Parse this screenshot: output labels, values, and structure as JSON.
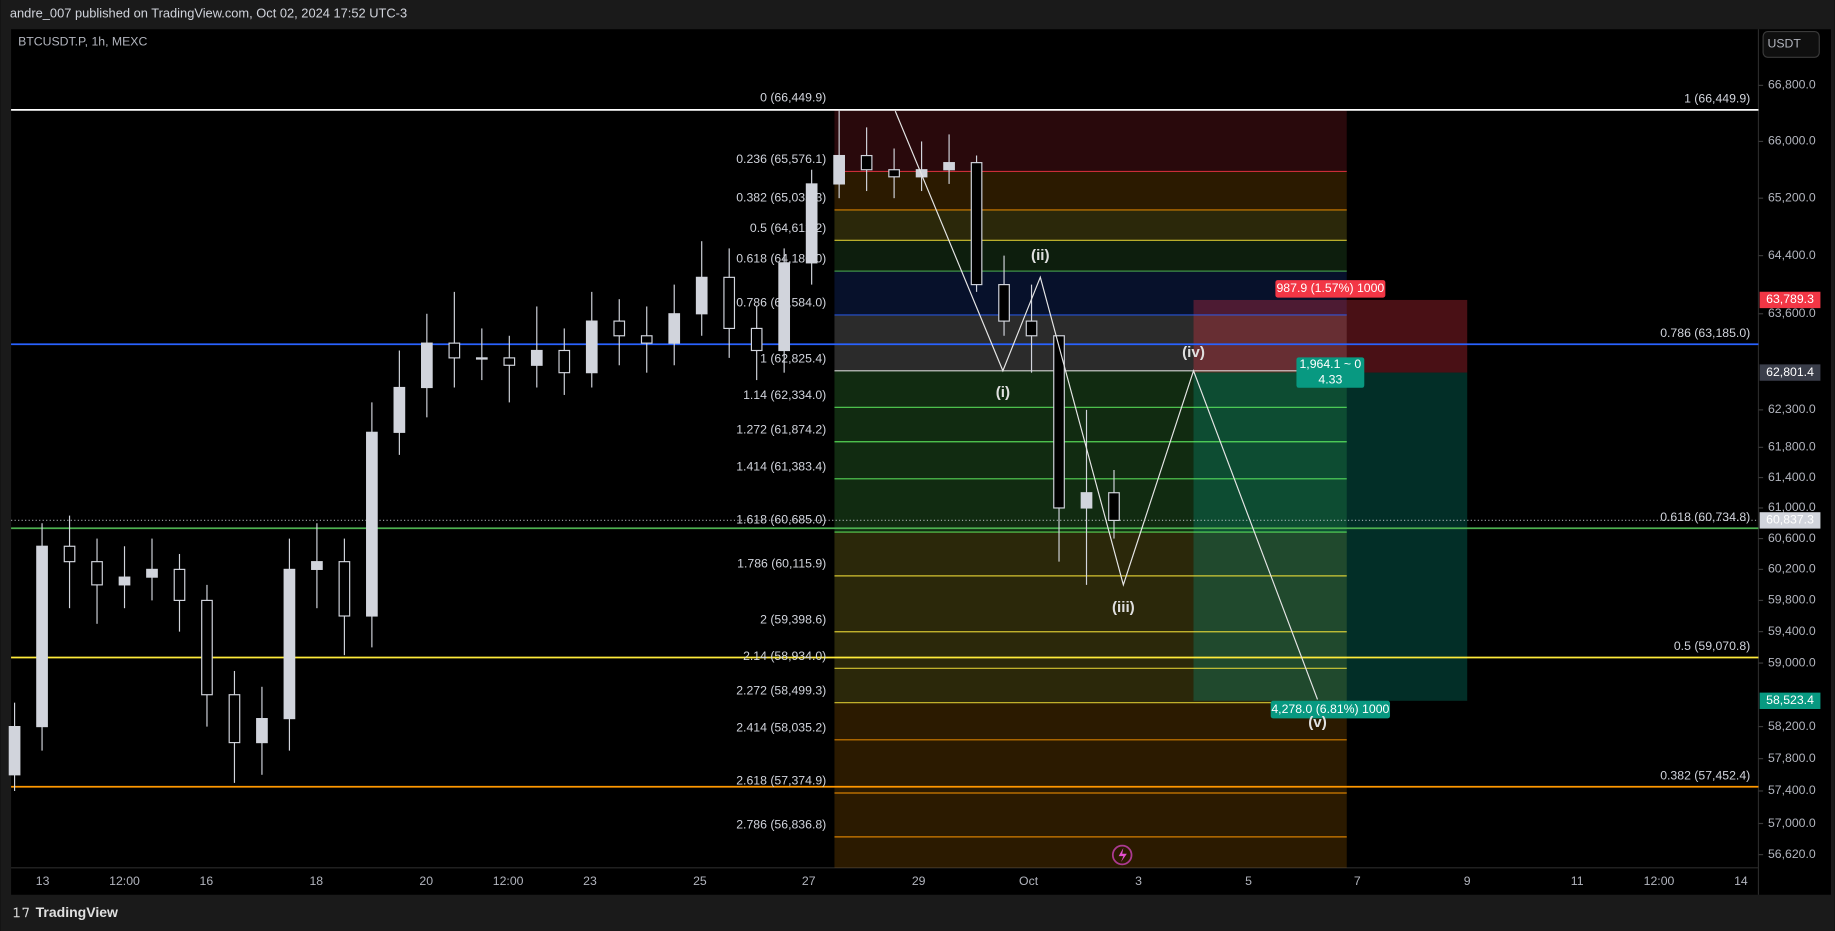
{
  "header": {
    "publisher": "andre_007 published on TradingView.com, Oct 02, 2024 17:52 UTC-3"
  },
  "footer": {
    "brand": "TradingView"
  },
  "chart_data": {
    "type": "candlestick",
    "symbol": "BTCUSDT.P, 1h, MEXC",
    "currency": "USDT",
    "log_scale": true,
    "color": "#d1d4dc",
    "ylim": [
      56134,
      67611
    ],
    "yticks": [
      {
        "value": 66800,
        "label": "66,800.0"
      },
      {
        "value": 66000,
        "label": "66,000.0"
      },
      {
        "value": 65200,
        "label": "65,200.0"
      },
      {
        "value": 64400,
        "label": "64,400.0"
      },
      {
        "value": 63600,
        "label": "63,600.0"
      },
      {
        "value": 62300,
        "label": "62,300.0"
      },
      {
        "value": 61800,
        "label": "61,800.0"
      },
      {
        "value": 61400,
        "label": "61,400.0"
      },
      {
        "value": 61000,
        "label": "61,000.0"
      },
      {
        "value": 60600,
        "label": "60,600.0"
      },
      {
        "value": 60200,
        "label": "60,200.0"
      },
      {
        "value": 59800,
        "label": "59,800.0"
      },
      {
        "value": 59400,
        "label": "59,400.0"
      },
      {
        "value": 59000,
        "label": "59,000.0"
      },
      {
        "value": 58200,
        "label": "58,200.0"
      },
      {
        "value": 57800,
        "label": "57,800.0"
      },
      {
        "value": 57400,
        "label": "57,400.0"
      },
      {
        "value": 57000,
        "label": "57,000.0"
      },
      {
        "value": 56620,
        "label": "56,620.0"
      }
    ],
    "x_labels": [
      "13",
      "12:00",
      "16",
      "18",
      "20",
      "12:00",
      "23",
      "25",
      "27",
      "29",
      "Oct",
      "3",
      "5",
      "7",
      "9",
      "11",
      "12:00",
      "14"
    ],
    "open": [
      57600,
      58200,
      60500,
      60300,
      60000,
      60100,
      60200,
      59800,
      58600,
      58000,
      58300,
      60200,
      60300,
      59600,
      62000,
      62600,
      63200,
      63000,
      63000,
      62900,
      63100,
      62800,
      63500,
      63300,
      63200,
      63600,
      64100,
      63400,
      63100,
      64300,
      65400,
      65800,
      65600,
      65500,
      65600,
      65700,
      64000,
      63500,
      63300,
      61000,
      61200
    ],
    "high": [
      58500,
      60800,
      60900,
      60600,
      60500,
      60600,
      60400,
      60000,
      58900,
      58700,
      60600,
      60800,
      60600,
      62400,
      63100,
      63600,
      63900,
      63400,
      63300,
      63700,
      63400,
      63900,
      63800,
      63700,
      64000,
      64600,
      64500,
      63700,
      64500,
      65600,
      66450,
      66200,
      65900,
      66000,
      66100,
      65800,
      64400,
      64000,
      63300,
      62300,
      61500
    ],
    "low": [
      57400,
      57900,
      59700,
      59500,
      59700,
      59800,
      59400,
      58200,
      57500,
      57600,
      57900,
      59700,
      59100,
      59200,
      61700,
      62200,
      62600,
      62700,
      62400,
      62600,
      62500,
      62600,
      62900,
      62800,
      62900,
      63300,
      63000,
      62700,
      62800,
      64000,
      65200,
      65300,
      65200,
      65300,
      65400,
      63900,
      63300,
      62800,
      60300,
      60000,
      60600
    ],
    "close": [
      58200,
      60500,
      60300,
      60000,
      60100,
      60200,
      59800,
      58600,
      58000,
      58300,
      60200,
      60300,
      59600,
      62000,
      62600,
      63200,
      63000,
      63000,
      62900,
      63100,
      62800,
      63500,
      63300,
      63200,
      63600,
      64100,
      63400,
      63100,
      64300,
      65400,
      65800,
      65600,
      65500,
      65600,
      65700,
      64000,
      63500,
      63300,
      61000,
      61200,
      60837
    ],
    "fib_extension": [
      {
        "label": "0 (66,449.9)",
        "value": 66449.9,
        "color": "#ffffff"
      },
      {
        "label": "0.236 (65,576.1)",
        "value": 65576.1,
        "color": "#f23645"
      },
      {
        "label": "0.382 (65,035.3)",
        "value": 65035.3,
        "color": "#ff9800"
      },
      {
        "label": "0.5 (64,612.2)",
        "value": 64612.2,
        "color": "#ffeb3b"
      },
      {
        "label": "0.618 (64,186.0)",
        "value": 64186.0,
        "color": "#4caf50"
      },
      {
        "label": "0.786 (63,584.0)",
        "value": 63584.0,
        "color": "#2962ff"
      },
      {
        "label": "1 (62,825.4)",
        "value": 62825.4,
        "color": "#ffffff"
      },
      {
        "label": "1.14 (62,334.0)",
        "value": 62334.0,
        "color": "#66ff66"
      },
      {
        "label": "1.272 (61,874.2)",
        "value": 61874.2,
        "color": "#66ff66"
      },
      {
        "label": "1.414 (61,383.4)",
        "value": 61383.4,
        "color": "#66ff66"
      },
      {
        "label": "1.618 (60,685.0)",
        "value": 60685.0,
        "color": "#66ff66"
      },
      {
        "label": "1.786 (60,115.9)",
        "value": 60115.9,
        "color": "#ffeb3b"
      },
      {
        "label": "2 (59,398.6)",
        "value": 59398.6,
        "color": "#ffeb3b"
      },
      {
        "label": "2.14 (58,934.0)",
        "value": 58934.0,
        "color": "#ffeb3b"
      },
      {
        "label": "2.272 (58,499.3)",
        "value": 58499.3,
        "color": "#ffeb3b"
      },
      {
        "label": "2.414 (58,035.2)",
        "value": 58035.2,
        "color": "#ff9800"
      },
      {
        "label": "2.618 (57,374.9)",
        "value": 57374.9,
        "color": "#ff9800"
      },
      {
        "label": "2.786 (56,836.8)",
        "value": 56836.8,
        "color": "#ff9800"
      }
    ],
    "fib_retracement": [
      {
        "label": "1 (66,449.9)",
        "value": 66449.9,
        "color": "#ffffff"
      },
      {
        "label": "0.786 (63,185.0)",
        "value": 63185.0,
        "color": "#2962ff"
      },
      {
        "label": "0.618 (60,734.8)",
        "value": 60734.8,
        "color": "#4caf50"
      },
      {
        "label": "0.5 (59,070.8)",
        "value": 59070.8,
        "color": "#ffeb3b"
      },
      {
        "label": "0.382 (57,452.4)",
        "value": 57452.4,
        "color": "#ff9800"
      }
    ],
    "price_tags": [
      {
        "value": 63789.3,
        "label": "63,789.3",
        "color": "#f23645"
      },
      {
        "value": 62801.4,
        "label": "62,801.4",
        "color": "#3a3e4a"
      },
      {
        "value": 60837.3,
        "label": "60,837.3",
        "color": "#d1d4dc"
      },
      {
        "value": 58523.4,
        "label": "58,523.4",
        "color": "#089981"
      }
    ],
    "position": {
      "stop_label": "987.9 (1.57%) 1000",
      "ratio_label": "1,964.1 ~ 0",
      "ratio_value_label": "4.33",
      "target_label": "4,278.0 (6.81%) 1000"
    },
    "waves": [
      "(i)",
      "(ii)",
      "(iii)",
      "(iv)",
      "(v)"
    ]
  }
}
